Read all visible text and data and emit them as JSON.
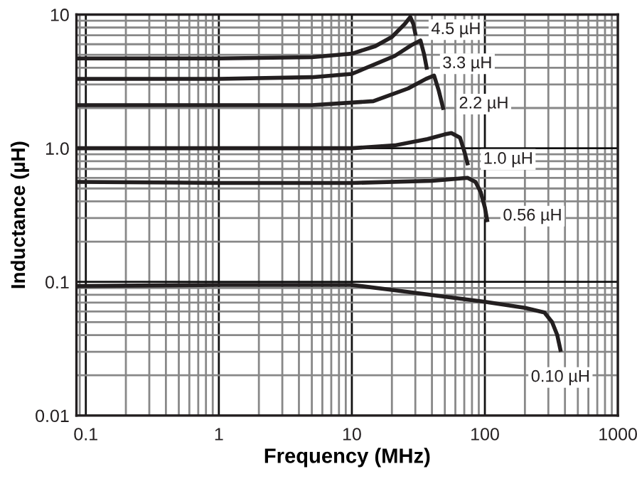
{
  "chart_data": {
    "type": "line",
    "xlabel": "Frequency (MHz)",
    "ylabel": "Inductance (µH)",
    "log": "xy",
    "xlim": [
      0.085,
      1000
    ],
    "ylim": [
      0.01,
      10
    ],
    "xticks": [
      0.1,
      1,
      10,
      100,
      1000
    ],
    "yticks": [
      0.01,
      0.1,
      {
        "value": 1,
        "label": "1.0"
      },
      10
    ],
    "grid": true,
    "legend": false,
    "marker": "none",
    "line_style": "solid",
    "series": [
      {
        "name": "4.5 µH",
        "color": "#231f20",
        "x": [
          0.085,
          1,
          5,
          10,
          15,
          20,
          25,
          27.5,
          29,
          30
        ],
        "values": [
          4.7,
          4.7,
          4.8,
          5.1,
          5.8,
          6.8,
          8.5,
          9.6,
          8.5,
          7.2
        ]
      },
      {
        "name": "3.3 µH",
        "color": "#231f20",
        "x": [
          0.085,
          1,
          5,
          10,
          21,
          28,
          32.8,
          35,
          36.5
        ],
        "values": [
          3.3,
          3.3,
          3.4,
          3.6,
          4.9,
          5.9,
          6.4,
          5.0,
          4.0
        ]
      },
      {
        "name": "2.2 µH",
        "color": "#231f20",
        "x": [
          0.085,
          1,
          5,
          14.5,
          26.5,
          36,
          41.5,
          45,
          48.5
        ],
        "values": [
          2.1,
          2.1,
          2.1,
          2.25,
          2.8,
          3.3,
          3.5,
          2.7,
          2.0
        ]
      },
      {
        "name": "1.0 µH",
        "color": "#231f20",
        "x": [
          0.085,
          1,
          10,
          21,
          37,
          50,
          56,
          65,
          70,
          74
        ],
        "values": [
          1.0,
          1.0,
          1.0,
          1.05,
          1.17,
          1.27,
          1.3,
          1.2,
          0.95,
          0.77
        ]
      },
      {
        "name": "0.56 µH",
        "color": "#231f20",
        "x": [
          0.085,
          1,
          10,
          40,
          74,
          85,
          93,
          100,
          104
        ],
        "values": [
          0.56,
          0.55,
          0.55,
          0.57,
          0.6,
          0.56,
          0.47,
          0.36,
          0.29
        ]
      },
      {
        "name": "0.10 µH",
        "color": "#231f20",
        "x": [
          0.085,
          1,
          10,
          20,
          100,
          200,
          280,
          320,
          350,
          370
        ],
        "values": [
          0.093,
          0.095,
          0.095,
          0.087,
          0.071,
          0.064,
          0.059,
          0.05,
          0.04,
          0.031
        ]
      }
    ]
  }
}
